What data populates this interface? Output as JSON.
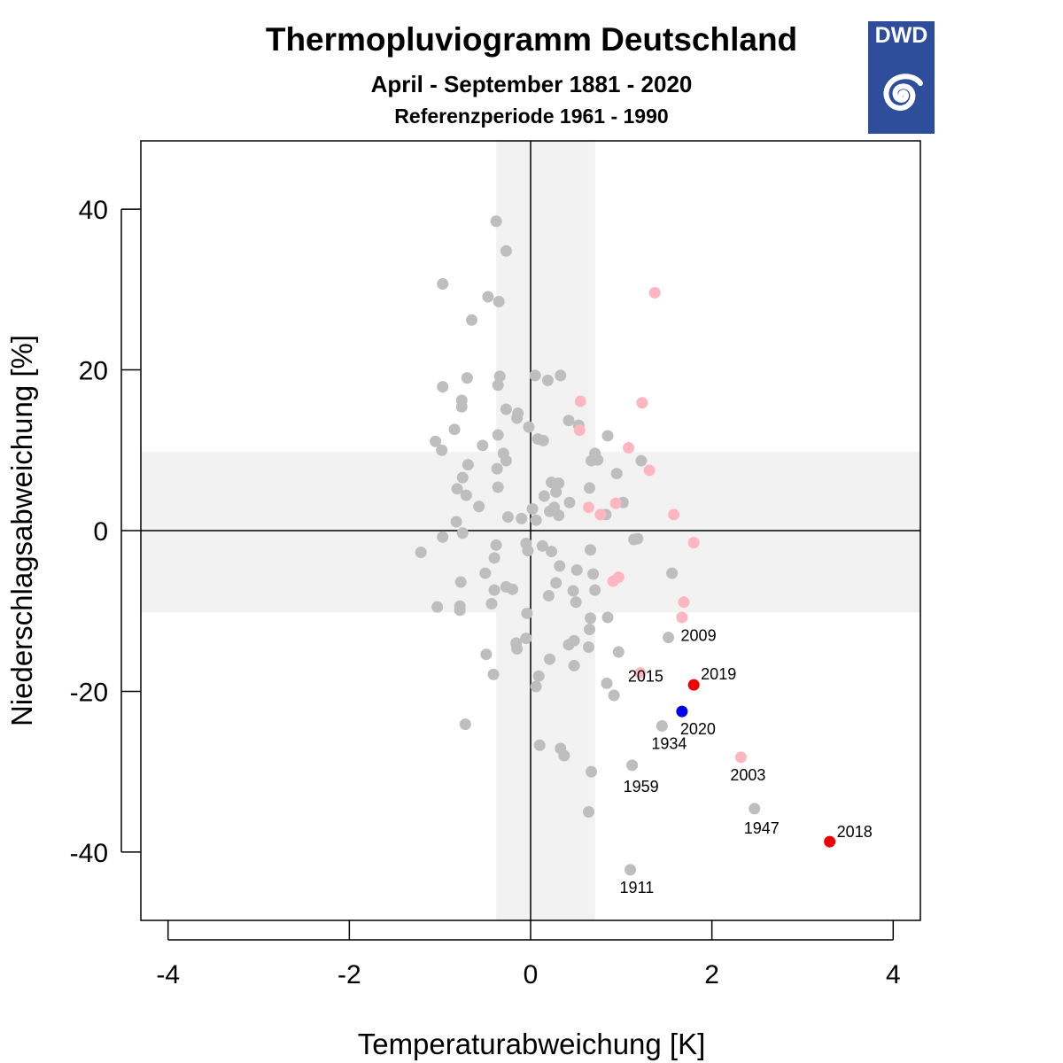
{
  "header": {
    "title": "Thermopluviogramm Deutschland",
    "subtitle": "April - September 1881 - 2020",
    "reference": "Referenzperiode 1961 - 1990",
    "logo_text": "DWD"
  },
  "colors": {
    "normal": "#BEBEBE",
    "recent": "#FFB6C1",
    "record": "#EE0000",
    "current": "#0000EE",
    "band": "#F2F2F2",
    "logo": "#2E4E9B"
  },
  "chart_data": {
    "type": "scatter",
    "xlabel": "Temperaturabweichung [K]",
    "ylabel": "Niederschlagsabweichung [%]",
    "xlim": [
      -4.3,
      4.3
    ],
    "ylim": [
      -48.5,
      48.5
    ],
    "xticks": [
      -4,
      -2,
      0,
      2,
      4
    ],
    "yticks": [
      -40,
      -20,
      0,
      20,
      40
    ],
    "band_x": [
      -0.38,
      0.71
    ],
    "band_y": [
      -10.2,
      9.8
    ],
    "labeled_points": [
      {
        "year": "2009",
        "x": 1.52,
        "y": -13.3,
        "color": "normal"
      },
      {
        "year": "2019",
        "x": 1.8,
        "y": -19.2,
        "color": "record"
      },
      {
        "year": "2015",
        "x": 1.21,
        "y": -17.7,
        "color": "recent"
      },
      {
        "year": "2020",
        "x": 1.67,
        "y": -22.5,
        "color": "current"
      },
      {
        "year": "1934",
        "x": 1.45,
        "y": -24.3,
        "color": "normal"
      },
      {
        "year": "1959",
        "x": 1.12,
        "y": -29.2,
        "color": "normal"
      },
      {
        "year": "2003",
        "x": 2.32,
        "y": -28.2,
        "color": "recent"
      },
      {
        "year": "1947",
        "x": 2.47,
        "y": -34.6,
        "color": "normal"
      },
      {
        "year": "2018",
        "x": 3.3,
        "y": -38.7,
        "color": "record"
      },
      {
        "year": "1911",
        "x": 1.1,
        "y": -42.2,
        "color": "normal"
      }
    ],
    "recent_points": [
      [
        1.37,
        29.6
      ],
      [
        0.55,
        16.1
      ],
      [
        1.23,
        15.9
      ],
      [
        0.54,
        12.5
      ],
      [
        1.08,
        10.3
      ],
      [
        1.31,
        7.5
      ],
      [
        0.64,
        2.9
      ],
      [
        0.77,
        2.0
      ],
      [
        0.94,
        3.4
      ],
      [
        1.58,
        2.0
      ],
      [
        1.8,
        -1.5
      ],
      [
        0.97,
        -5.8
      ],
      [
        0.91,
        -6.3
      ],
      [
        1.69,
        -8.9
      ],
      [
        1.67,
        -10.8
      ]
    ],
    "normal_points": [
      [
        -0.38,
        38.5
      ],
      [
        -0.27,
        34.8
      ],
      [
        -0.97,
        30.7
      ],
      [
        -0.47,
        29.1
      ],
      [
        -0.35,
        28.5
      ],
      [
        -0.65,
        26.2
      ],
      [
        -0.7,
        19.0
      ],
      [
        -0.34,
        19.2
      ],
      [
        -0.36,
        18.1
      ],
      [
        -0.97,
        17.9
      ],
      [
        -0.76,
        16.2
      ],
      [
        -0.76,
        15.4
      ],
      [
        0.05,
        19.3
      ],
      [
        0.19,
        18.7
      ],
      [
        0.33,
        19.3
      ],
      [
        -0.27,
        15.1
      ],
      [
        -0.14,
        14.6
      ],
      [
        -0.15,
        14.0
      ],
      [
        0.42,
        13.7
      ],
      [
        0.53,
        13.1
      ],
      [
        -0.84,
        12.6
      ],
      [
        -1.05,
        11.1
      ],
      [
        -0.36,
        11.9
      ],
      [
        -0.02,
        12.9
      ],
      [
        0.08,
        11.4
      ],
      [
        0.14,
        11.2
      ],
      [
        0.85,
        11.8
      ],
      [
        -0.98,
        10.0
      ],
      [
        -0.53,
        10.6
      ],
      [
        -0.3,
        9.6
      ],
      [
        -0.27,
        8.7
      ],
      [
        0.71,
        9.6
      ],
      [
        0.74,
        8.8
      ],
      [
        0.67,
        8.7
      ],
      [
        1.22,
        8.7
      ],
      [
        -0.69,
        8.2
      ],
      [
        -0.37,
        7.7
      ],
      [
        0.95,
        7.1
      ],
      [
        -0.75,
        6.6
      ],
      [
        -0.81,
        5.2
      ],
      [
        -0.71,
        4.4
      ],
      [
        -0.36,
        5.4
      ],
      [
        0.23,
        6.0
      ],
      [
        0.31,
        5.9
      ],
      [
        0.28,
        4.8
      ],
      [
        0.15,
        4.3
      ],
      [
        0.65,
        5.3
      ],
      [
        1.02,
        3.5
      ],
      [
        -0.57,
        3.0
      ],
      [
        0.02,
        2.7
      ],
      [
        0.26,
        2.9
      ],
      [
        0.21,
        2.4
      ],
      [
        0.43,
        3.5
      ],
      [
        0.31,
        1.9
      ],
      [
        0.83,
        2.0
      ],
      [
        -0.25,
        1.7
      ],
      [
        -0.1,
        1.5
      ],
      [
        0.06,
        1.3
      ],
      [
        -0.82,
        1.1
      ],
      [
        -0.75,
        -0.3
      ],
      [
        -0.97,
        -0.8
      ],
      [
        -1.21,
        -2.7
      ],
      [
        -0.38,
        -1.8
      ],
      [
        -0.4,
        -3.4
      ],
      [
        -0.05,
        -1.6
      ],
      [
        -0.03,
        -2.5
      ],
      [
        0.13,
        -1.9
      ],
      [
        0.23,
        -2.6
      ],
      [
        0.66,
        -2.4
      ],
      [
        1.14,
        -1.1
      ],
      [
        1.18,
        -1.0
      ],
      [
        -0.5,
        -5.3
      ],
      [
        -0.77,
        -6.4
      ],
      [
        -0.4,
        -7.4
      ],
      [
        -0.27,
        -7.0
      ],
      [
        -0.2,
        -7.3
      ],
      [
        0.32,
        -4.4
      ],
      [
        0.51,
        -4.9
      ],
      [
        0.69,
        -5.4
      ],
      [
        0.28,
        -6.5
      ],
      [
        0.2,
        -8.1
      ],
      [
        0.47,
        -7.5
      ],
      [
        0.71,
        -7.4
      ],
      [
        1.56,
        -5.3
      ],
      [
        -1.03,
        -9.5
      ],
      [
        -0.78,
        -9.4
      ],
      [
        -0.78,
        -9.9
      ],
      [
        -0.43,
        -9.1
      ],
      [
        0.5,
        -8.9
      ],
      [
        -0.04,
        -10.3
      ],
      [
        0.85,
        -10.8
      ],
      [
        0.66,
        -10.9
      ],
      [
        0.65,
        -12.3
      ],
      [
        -0.05,
        -13.4
      ],
      [
        -0.16,
        -14.0
      ],
      [
        -0.15,
        -14.7
      ],
      [
        0.48,
        -13.7
      ],
      [
        0.42,
        -14.2
      ],
      [
        0.64,
        -14.5
      ],
      [
        0.97,
        -15.1
      ],
      [
        -0.49,
        -15.4
      ],
      [
        0.21,
        -16.0
      ],
      [
        0.48,
        -16.8
      ],
      [
        -0.41,
        -17.9
      ],
      [
        0.09,
        -18.1
      ],
      [
        0.06,
        -19.4
      ],
      [
        0.84,
        -19.0
      ],
      [
        0.92,
        -20.5
      ],
      [
        -0.72,
        -24.1
      ],
      [
        0.1,
        -26.7
      ],
      [
        0.33,
        -27.1
      ],
      [
        0.37,
        -28.0
      ],
      [
        0.67,
        -30.0
      ],
      [
        0.64,
        -35.0
      ]
    ]
  }
}
